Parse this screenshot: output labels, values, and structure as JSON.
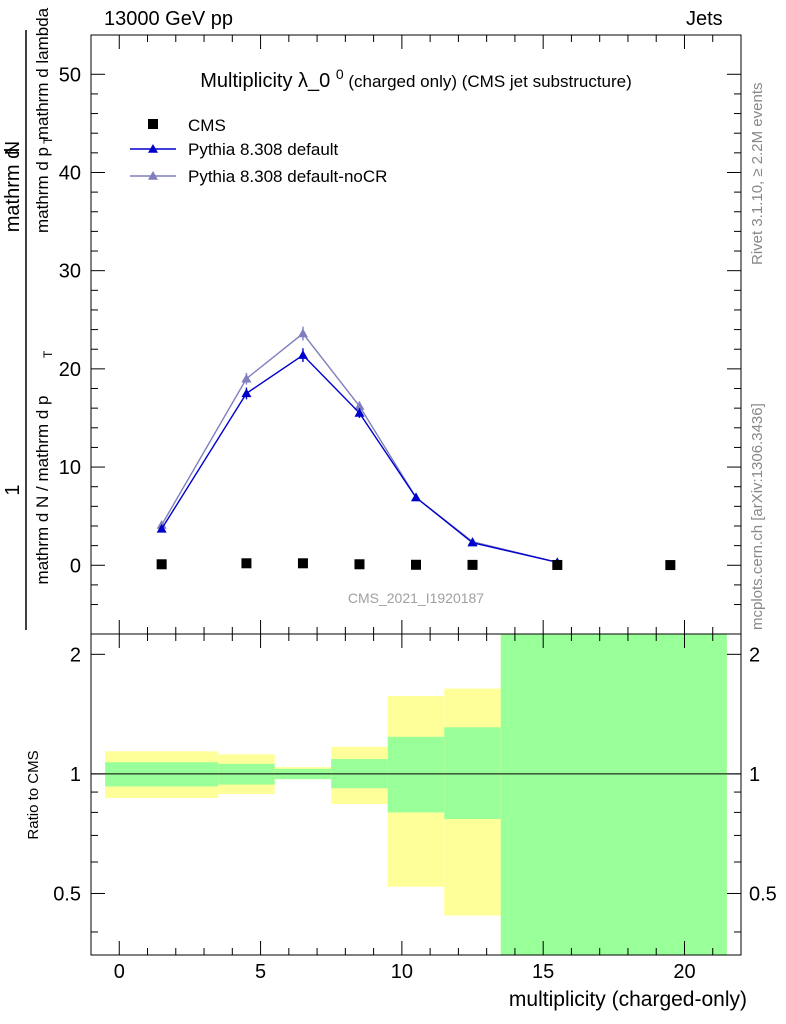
{
  "header": {
    "left": "13000 GeV pp",
    "right": "Jets"
  },
  "side_text": {
    "rivet": "Rivet 3.1.10, ≥ 2.2M events",
    "mcplots": "mcplots.cern.ch [arXiv:1306.3436]"
  },
  "colors": {
    "cms": "#000000",
    "default": "#0000cc",
    "nocr": "#7f7fbf",
    "band_inner": "#99ff99",
    "band_outer": "#ffff99"
  },
  "chart_data": [
    {
      "type": "line",
      "title": "Multiplicity λ_0",
      "title_sup": "0",
      "title_suffix": "(charged only) (CMS jet substructure)",
      "ylabel": "1 / mathrm d N / mathrm d p_T mathrm d N / mathrm d p_T mathrm d lambda",
      "xlim": [
        -1,
        22
      ],
      "ylim": [
        -7,
        54
      ],
      "yticks": [
        0,
        10,
        20,
        30,
        40,
        50
      ],
      "watermark": "CMS_2021_I1920187",
      "legend_position": "top-left",
      "series": [
        {
          "name": "CMS",
          "marker": "square",
          "x": [
            1.5,
            4.5,
            6.5,
            8.5,
            10.5,
            12.5,
            15.5,
            19.5
          ],
          "y": [
            0.1,
            0.2,
            0.2,
            0.1,
            0.05,
            0.04,
            0.03,
            0.02
          ]
        },
        {
          "name": "Pythia 8.308 default",
          "marker": "triangle",
          "x": [
            1.5,
            4.5,
            6.5,
            8.5,
            10.5,
            12.5,
            15.5
          ],
          "y": [
            3.7,
            17.5,
            21.4,
            15.5,
            6.9,
            2.3,
            0.3
          ],
          "yerr": [
            0.3,
            0.6,
            0.7,
            0.5,
            0.3,
            0.2,
            0.1
          ]
        },
        {
          "name": "Pythia 8.308 default-noCR",
          "marker": "triangle",
          "x": [
            1.5,
            4.5,
            6.5,
            8.5,
            10.5,
            12.5,
            15.5
          ],
          "y": [
            4.1,
            19.0,
            23.6,
            16.2,
            6.9,
            2.4,
            0.3
          ],
          "yerr": [
            0.3,
            0.6,
            0.7,
            0.5,
            0.3,
            0.2,
            0.1
          ]
        }
      ]
    },
    {
      "type": "area",
      "ylabel": "Ratio to CMS",
      "xlabel": "multiplicity (charged-only)",
      "xlim": [
        -1,
        22
      ],
      "ylim": [
        0.35,
        2.25
      ],
      "xticks": [
        0,
        5,
        10,
        15,
        20
      ],
      "yticks": [
        0.5,
        1,
        2
      ],
      "reference": 1,
      "bins": [
        {
          "x0": -0.5,
          "x1": 3.5,
          "inner": [
            0.93,
            1.07
          ],
          "outer": [
            0.87,
            1.14
          ]
        },
        {
          "x0": 3.5,
          "x1": 5.5,
          "inner": [
            0.94,
            1.06
          ],
          "outer": [
            0.89,
            1.12
          ]
        },
        {
          "x0": 5.5,
          "x1": 7.5,
          "inner": [
            0.97,
            1.03
          ],
          "outer": [
            0.97,
            1.04
          ]
        },
        {
          "x0": 7.5,
          "x1": 9.5,
          "inner": [
            0.92,
            1.09
          ],
          "outer": [
            0.84,
            1.17
          ]
        },
        {
          "x0": 9.5,
          "x1": 11.5,
          "inner": [
            0.8,
            1.24
          ],
          "outer": [
            0.52,
            1.57
          ]
        },
        {
          "x0": 11.5,
          "x1": 13.5,
          "inner": [
            0.77,
            1.31
          ],
          "outer": [
            0.44,
            1.64
          ]
        },
        {
          "x0": 13.5,
          "x1": 21.5,
          "inner": [
            0.35,
            2.25
          ],
          "outer": [
            0.35,
            2.25
          ]
        }
      ]
    }
  ]
}
